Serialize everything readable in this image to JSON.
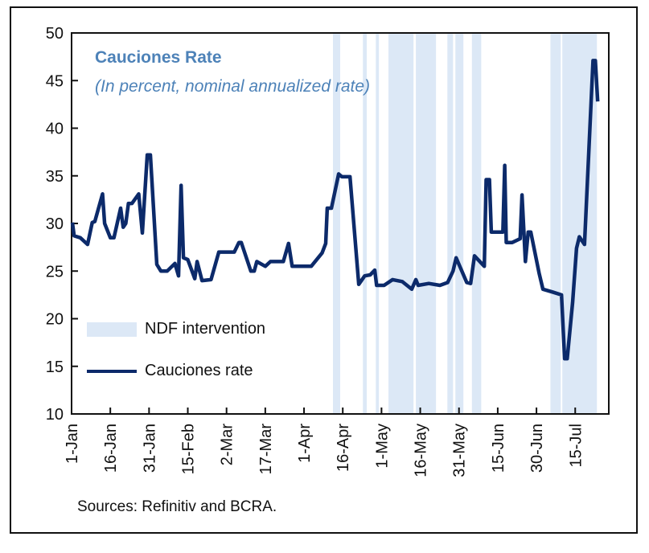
{
  "chart_data": {
    "type": "line",
    "title": "Cauciones Rate",
    "subtitle": "(In percent, nominal annualized rate)",
    "xlabel": "",
    "ylabel": "",
    "x_unit": "days since 1-Jan",
    "xlim": [
      0,
      208
    ],
    "ylim": [
      10,
      50
    ],
    "yticks": [
      10,
      15,
      20,
      25,
      30,
      35,
      40,
      45,
      50
    ],
    "xticks": [
      {
        "day": 0,
        "label": "1-Jan"
      },
      {
        "day": 15,
        "label": "16-Jan"
      },
      {
        "day": 30,
        "label": "31-Jan"
      },
      {
        "day": 45,
        "label": "15-Feb"
      },
      {
        "day": 60,
        "label": "2-Mar"
      },
      {
        "day": 75,
        "label": "17-Mar"
      },
      {
        "day": 90,
        "label": "1-Apr"
      },
      {
        "day": 105,
        "label": "16-Apr"
      },
      {
        "day": 120,
        "label": "1-May"
      },
      {
        "day": 135,
        "label": "16-May"
      },
      {
        "day": 150,
        "label": "31-May"
      },
      {
        "day": 165,
        "label": "15-Jun"
      },
      {
        "day": 180,
        "label": "30-Jun"
      },
      {
        "day": 195,
        "label": "15-Jul"
      }
    ],
    "grid": false,
    "legend_position": "lower-left",
    "series": [
      {
        "name": "Cauciones rate",
        "color": "#0c2a6a",
        "x": [
          0.3,
          1,
          3.4,
          6.2,
          8,
          9,
          12,
          12.8,
          15,
          16.4,
          19,
          20,
          21,
          22,
          23.4,
          26,
          27.4,
          29.3,
          30.5,
          33,
          34.6,
          37,
          40,
          41.4,
          42.4,
          43.3,
          45,
          47.7,
          48.6,
          50.5,
          54,
          57,
          63,
          64.8,
          65.7,
          69.4,
          70.7,
          71.7,
          75,
          77,
          82,
          84,
          85.4,
          92.8,
          97,
          98.4,
          99,
          100.6,
          103.4,
          104.7,
          107.8,
          111.2,
          113.5,
          115.6,
          117.4,
          118.1,
          121,
          124.3,
          128,
          131.7,
          133.3,
          134.2,
          138.3,
          142.6,
          145.6,
          147.7,
          148.9,
          153,
          154.5,
          156,
          159.8,
          160.5,
          161.8,
          162.5,
          167,
          167.7,
          168.3,
          170.6,
          173.7,
          174.4,
          175.7,
          176.8,
          177.8,
          181,
          182.5,
          186.2,
          189.7,
          190.9,
          191.9,
          194,
          195.5,
          196.6,
          198.6,
          201.9,
          202.8,
          203.7
        ],
        "y": [
          30.1,
          28.7,
          28.5,
          27.8,
          30.1,
          30.2,
          33.1,
          30,
          28.5,
          28.5,
          31.6,
          29.6,
          30,
          32.1,
          32.1,
          33.1,
          29,
          37.2,
          37.2,
          25.7,
          25,
          25,
          25.8,
          24.5,
          34,
          26.4,
          26.2,
          24.2,
          26,
          24,
          24.1,
          27,
          27,
          28,
          28,
          25,
          25,
          26,
          25.5,
          26,
          26,
          27.9,
          25.5,
          25.5,
          26.9,
          27.9,
          31.6,
          31.6,
          35.2,
          34.9,
          34.9,
          23.6,
          24.5,
          24.6,
          25.1,
          23.5,
          23.5,
          24.1,
          23.9,
          23.1,
          24.1,
          23.5,
          23.7,
          23.5,
          23.8,
          25,
          26.4,
          23.8,
          23.7,
          26.6,
          25.5,
          34.6,
          34.6,
          29.1,
          29.1,
          36.1,
          28,
          28,
          28.4,
          33,
          26,
          29.1,
          29.1,
          24.8,
          23.1,
          22.8,
          22.5,
          15.8,
          15.8,
          21.7,
          27.4,
          28.6,
          27.8,
          47.1,
          47.1,
          42.8
        ]
      }
    ],
    "shaded_regions": {
      "name": "NDF intervention",
      "color": "#dce8f6",
      "ranges": [
        [
          101.2,
          104
        ],
        [
          112.8,
          114.3
        ],
        [
          117.8,
          119
        ],
        [
          122.7,
          132.4
        ],
        [
          133.3,
          141.1
        ],
        [
          145.5,
          147.7
        ],
        [
          148.6,
          151.7
        ],
        [
          155,
          158.6
        ],
        [
          185.4,
          189.4
        ],
        [
          190,
          203.4
        ]
      ]
    },
    "legend": [
      "NDF intervention",
      "Cauciones rate"
    ],
    "source": "Sources: Refinitiv and BCRA."
  }
}
